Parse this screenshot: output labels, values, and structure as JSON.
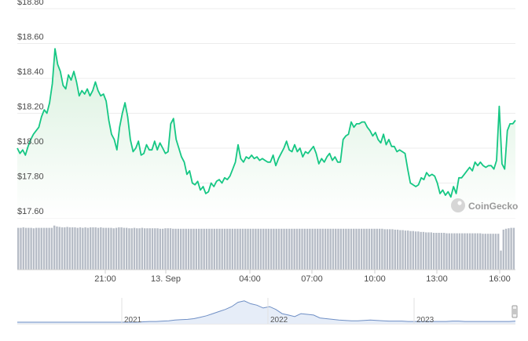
{
  "chart_data": {
    "type": "area",
    "title": "",
    "xlabel": "",
    "ylabel": "",
    "x_ticks": [
      "21:00",
      "13. Sep",
      "04:00",
      "07:00",
      "10:00",
      "13:00",
      "16:00"
    ],
    "y_ticks": [
      "$17.60",
      "$17.80",
      "$18.00",
      "$18.20",
      "$18.40",
      "$18.60",
      "$18.80"
    ],
    "ylim": [
      17.6,
      18.8
    ],
    "grid": true,
    "colors": {
      "line": "#16c784",
      "fill_top": "#dff3e4",
      "volume": "#b6bcc6",
      "navigator": "#6f8fc5"
    },
    "watermark": "CoinGecko",
    "series": [
      {
        "type": "price",
        "values": [
          18.0,
          17.97,
          17.99,
          17.96,
          18.01,
          18.05,
          18.08,
          18.1,
          18.12,
          18.18,
          18.22,
          18.2,
          18.26,
          18.37,
          18.57,
          18.48,
          18.44,
          18.36,
          18.34,
          18.42,
          18.39,
          18.44,
          18.38,
          18.3,
          18.33,
          18.31,
          18.34,
          18.3,
          18.33,
          18.38,
          18.33,
          18.3,
          18.31,
          18.27,
          18.16,
          18.08,
          18.05,
          17.99,
          18.12,
          18.2,
          18.26,
          18.18,
          18.05,
          17.98,
          18.0,
          18.04,
          17.96,
          17.97,
          18.02,
          17.99,
          17.99,
          18.04,
          17.99,
          18.03,
          18.0,
          17.97,
          17.98,
          18.14,
          18.17,
          18.05,
          18.0,
          17.95,
          17.92,
          17.85,
          17.87,
          17.8,
          17.79,
          17.81,
          17.76,
          17.78,
          17.74,
          17.75,
          17.8,
          17.78,
          17.81,
          17.82,
          17.8,
          17.83,
          17.82,
          17.84,
          17.88,
          17.92,
          18.02,
          17.94,
          17.92,
          17.95,
          17.94,
          17.96,
          17.94,
          17.95,
          17.93,
          17.94,
          17.93,
          17.92,
          17.92,
          17.96,
          17.9,
          17.94,
          17.97,
          18.0,
          18.04,
          17.99,
          17.98,
          18.02,
          17.98,
          18.0,
          17.95,
          17.98,
          17.97,
          17.99,
          18.01,
          17.97,
          17.91,
          17.94,
          17.92,
          17.95,
          17.97,
          17.93,
          17.95,
          17.92,
          17.92,
          18.05,
          18.07,
          18.08,
          18.15,
          18.12,
          18.14,
          18.14,
          18.15,
          18.15,
          18.12,
          18.1,
          18.07,
          18.09,
          18.05,
          18.03,
          18.08,
          18.02,
          18.05,
          18.01,
          18.01,
          17.98,
          17.99,
          17.98,
          17.97,
          17.88,
          17.8,
          17.79,
          17.78,
          17.79,
          17.83,
          17.82,
          17.86,
          17.84,
          17.85,
          17.84,
          17.8,
          17.74,
          17.76,
          17.73,
          17.75,
          17.72,
          17.78,
          17.74,
          17.83,
          17.83,
          17.85,
          17.87,
          17.89,
          17.87,
          17.92,
          17.9,
          17.92,
          17.9,
          17.89,
          17.9,
          17.9,
          17.88,
          17.93,
          18.24,
          17.91,
          17.88,
          18.1,
          18.14,
          18.14,
          18.16
        ]
      },
      {
        "type": "volume",
        "values": [
          92,
          92,
          93,
          92,
          92,
          92,
          91,
          92,
          92,
          92,
          92,
          92,
          92,
          92,
          97,
          95,
          94,
          93,
          93,
          94,
          93,
          93,
          93,
          92,
          93,
          92,
          93,
          92,
          93,
          93,
          93,
          92,
          93,
          92,
          92,
          92,
          92,
          91,
          92,
          93,
          93,
          92,
          92,
          91,
          91,
          92,
          91,
          91,
          92,
          91,
          91,
          91,
          91,
          91,
          91,
          90,
          90,
          91,
          91,
          91,
          90,
          90,
          90,
          90,
          90,
          90,
          90,
          90,
          90,
          90,
          90,
          90,
          90,
          90,
          90,
          90,
          90,
          90,
          90,
          90,
          90,
          90,
          90,
          90,
          90,
          90,
          90,
          90,
          90,
          90,
          90,
          90,
          90,
          90,
          90,
          90,
          90,
          90,
          90,
          90,
          90,
          90,
          90,
          90,
          90,
          90,
          90,
          90,
          90,
          90,
          90,
          90,
          90,
          90,
          90,
          90,
          90,
          90,
          90,
          90,
          90,
          90,
          90,
          90,
          90,
          90,
          90,
          90,
          90,
          90,
          90,
          90,
          90,
          90,
          90,
          90,
          90,
          90,
          90,
          90,
          90,
          90,
          89,
          89,
          89,
          89,
          88,
          88,
          87,
          87,
          86,
          86,
          85,
          85,
          84,
          84,
          83,
          83,
          82,
          82,
          82,
          81,
          81,
          81,
          81,
          81,
          80,
          80,
          80,
          80,
          80,
          80,
          80,
          80,
          80,
          80,
          80,
          80,
          80,
          80,
          79,
          79,
          79,
          79,
          79,
          79,
          79,
          42,
          88,
          90,
          91,
          92,
          92
        ]
      },
      {
        "type": "navigator",
        "x_ticks": [
          "2021",
          "2022",
          "2023"
        ],
        "values": [
          0,
          0,
          0,
          0,
          0,
          0,
          0,
          0,
          0,
          0,
          0,
          0,
          0,
          0,
          0,
          0,
          0,
          0,
          0,
          0,
          0.5,
          1,
          1,
          1.5,
          2,
          3,
          3.5,
          4,
          5,
          7,
          9,
          12,
          15,
          18,
          22,
          28,
          30,
          26,
          24,
          20,
          22,
          18,
          12,
          10,
          8,
          12,
          11,
          10,
          6,
          5,
          4,
          3,
          2.5,
          2,
          2,
          2.5,
          3,
          2.5,
          2,
          1.5,
          1.5,
          1.5,
          1,
          1,
          1,
          1,
          1,
          1,
          1,
          1.5,
          1.5,
          1,
          1,
          1,
          1,
          1,
          1,
          1,
          1,
          1.5
        ]
      }
    ]
  }
}
